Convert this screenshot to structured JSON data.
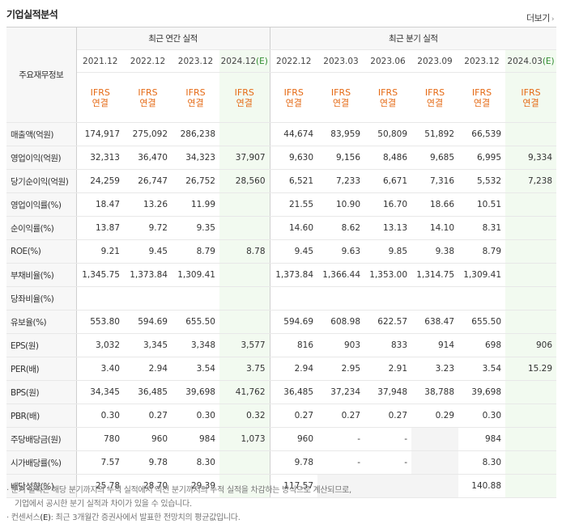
{
  "title": "기업실적분석",
  "more": "더보기",
  "header": {
    "row_label": "주요재무정보",
    "annual_group": "최근 연간 실적",
    "quarter_group": "최근 분기 실적",
    "ifrs_top": "IFRS",
    "ifrs_bottom": "연결",
    "annual_dates": [
      {
        "d": "2021.12",
        "e": ""
      },
      {
        "d": "2022.12",
        "e": ""
      },
      {
        "d": "2023.12",
        "e": ""
      },
      {
        "d": "2024.12",
        "e": "(E)"
      }
    ],
    "quarter_dates": [
      {
        "d": "2022.12",
        "e": ""
      },
      {
        "d": "2023.03",
        "e": ""
      },
      {
        "d": "2023.06",
        "e": ""
      },
      {
        "d": "2023.09",
        "e": ""
      },
      {
        "d": "2023.12",
        "e": ""
      },
      {
        "d": "2024.03",
        "e": "(E)"
      }
    ]
  },
  "rows": [
    {
      "label": "매출액(억원)",
      "v": [
        "174,917",
        "275,092",
        "286,238",
        "",
        "44,674",
        "83,959",
        "50,809",
        "51,892",
        "66,539",
        ""
      ]
    },
    {
      "label": "영업이익(억원)",
      "v": [
        "32,313",
        "36,470",
        "34,323",
        "37,907",
        "9,630",
        "9,156",
        "8,486",
        "9,685",
        "6,995",
        "9,334"
      ]
    },
    {
      "label": "당기순이익(억원)",
      "v": [
        "24,259",
        "26,747",
        "26,752",
        "28,560",
        "6,521",
        "7,233",
        "6,671",
        "7,316",
        "5,532",
        "7,238"
      ]
    },
    {
      "label": "영업이익률(%)",
      "v": [
        "18.47",
        "13.26",
        "11.99",
        "",
        "21.55",
        "10.90",
        "16.70",
        "18.66",
        "10.51",
        ""
      ]
    },
    {
      "label": "순이익률(%)",
      "v": [
        "13.87",
        "9.72",
        "9.35",
        "",
        "14.60",
        "8.62",
        "13.13",
        "14.10",
        "8.31",
        ""
      ]
    },
    {
      "label": "ROE(%)",
      "v": [
        "9.21",
        "9.45",
        "8.79",
        "8.78",
        "9.45",
        "9.63",
        "9.85",
        "9.38",
        "8.79",
        ""
      ]
    },
    {
      "label": "부채비율(%)",
      "v": [
        "1,345.75",
        "1,373.84",
        "1,309.41",
        "",
        "1,373.84",
        "1,366.44",
        "1,353.00",
        "1,314.75",
        "1,309.41",
        ""
      ]
    },
    {
      "label": "당좌비율(%)",
      "v": [
        "",
        "",
        "",
        "",
        "",
        "",
        "",
        "",
        "",
        ""
      ]
    },
    {
      "label": "유보율(%)",
      "v": [
        "553.80",
        "594.69",
        "655.50",
        "",
        "594.69",
        "608.98",
        "622.57",
        "638.47",
        "655.50",
        ""
      ]
    },
    {
      "label": "EPS(원)",
      "v": [
        "3,032",
        "3,345",
        "3,348",
        "3,577",
        "816",
        "903",
        "833",
        "914",
        "698",
        "906"
      ]
    },
    {
      "label": "PER(배)",
      "v": [
        "3.40",
        "2.94",
        "3.54",
        "3.75",
        "2.94",
        "2.95",
        "2.91",
        "3.23",
        "3.54",
        "15.29"
      ]
    },
    {
      "label": "BPS(원)",
      "v": [
        "34,345",
        "36,485",
        "39,698",
        "41,762",
        "36,485",
        "37,234",
        "37,948",
        "38,788",
        "39,698",
        ""
      ]
    },
    {
      "label": "PBR(배)",
      "v": [
        "0.30",
        "0.27",
        "0.30",
        "0.32",
        "0.27",
        "0.27",
        "0.27",
        "0.29",
        "0.30",
        ""
      ]
    },
    {
      "label": "주당배당금(원)",
      "v": [
        "780",
        "960",
        "984",
        "1,073",
        "960",
        "-",
        "-",
        "",
        "984",
        ""
      ]
    },
    {
      "label": "시가배당률(%)",
      "v": [
        "7.57",
        "9.78",
        "8.30",
        "",
        "9.78",
        "-",
        "-",
        "",
        "8.30",
        ""
      ]
    },
    {
      "label": "배당성향(%)",
      "v": [
        "25.78",
        "28.70",
        "29.39",
        "",
        "117.57",
        "",
        "",
        "",
        "140.88",
        ""
      ]
    }
  ],
  "notes": {
    "line1": "· 분기 실적은 해당 분기까지의 누적 실적에서 직전 분기까지의 누적 실적을 차감하는 방식으로 계산되므로,",
    "line2": "기업에서 공시한 분기 실적과 차이가 있을 수 있습니다.",
    "line3_pre": "· 컨센서스",
    "line3_e": "(E)",
    "line3_post": ": 최근 3개월간 증권사에서 발표한 전망치의 평균값입니다."
  }
}
